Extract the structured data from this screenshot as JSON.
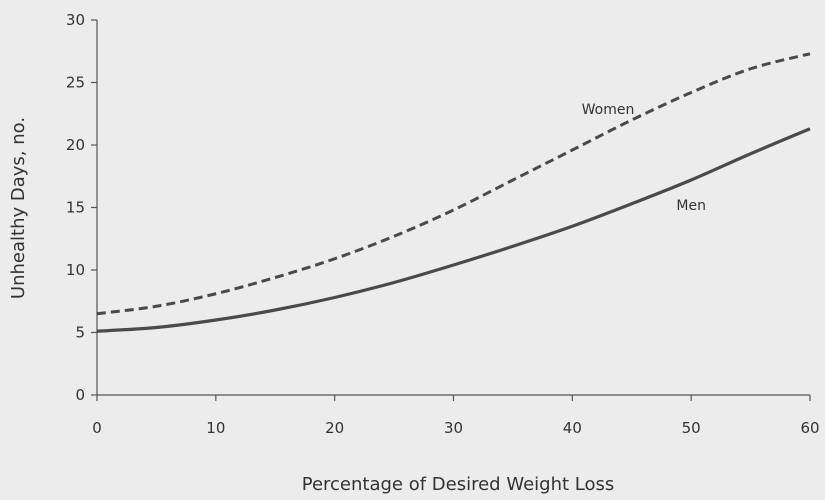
{
  "chart_data": {
    "type": "line",
    "xlabel": "Percentage of Desired Weight Loss",
    "ylabel": "Unhealthy Days, no.",
    "xlim": [
      0,
      60
    ],
    "ylim": [
      0,
      30
    ],
    "x_ticks": [
      0,
      10,
      20,
      30,
      40,
      50,
      60
    ],
    "y_ticks": [
      0,
      5,
      10,
      15,
      20,
      25,
      30
    ],
    "grid": false,
    "legend": "none",
    "series": [
      {
        "name": "Women",
        "style": "dashed",
        "color": "#4a4a4a",
        "x": [
          0,
          5,
          10,
          15,
          20,
          25,
          30,
          35,
          40,
          45,
          50,
          55,
          60
        ],
        "y": [
          6.5,
          7.1,
          8.1,
          9.4,
          10.9,
          12.7,
          14.8,
          17.2,
          19.6,
          22.0,
          24.2,
          26.1,
          27.3
        ]
      },
      {
        "name": "Men",
        "style": "solid",
        "color": "#4a4a4a",
        "x": [
          0,
          5,
          10,
          15,
          20,
          25,
          30,
          35,
          40,
          45,
          50,
          55,
          60
        ],
        "y": [
          5.1,
          5.4,
          6.0,
          6.8,
          7.8,
          9.0,
          10.4,
          11.9,
          13.5,
          15.3,
          17.2,
          19.3,
          21.3
        ]
      }
    ],
    "annotations": [
      {
        "text": "Women",
        "x": 43,
        "y": 22.5
      },
      {
        "text": "Men",
        "x": 50,
        "y": 14.8
      }
    ]
  }
}
